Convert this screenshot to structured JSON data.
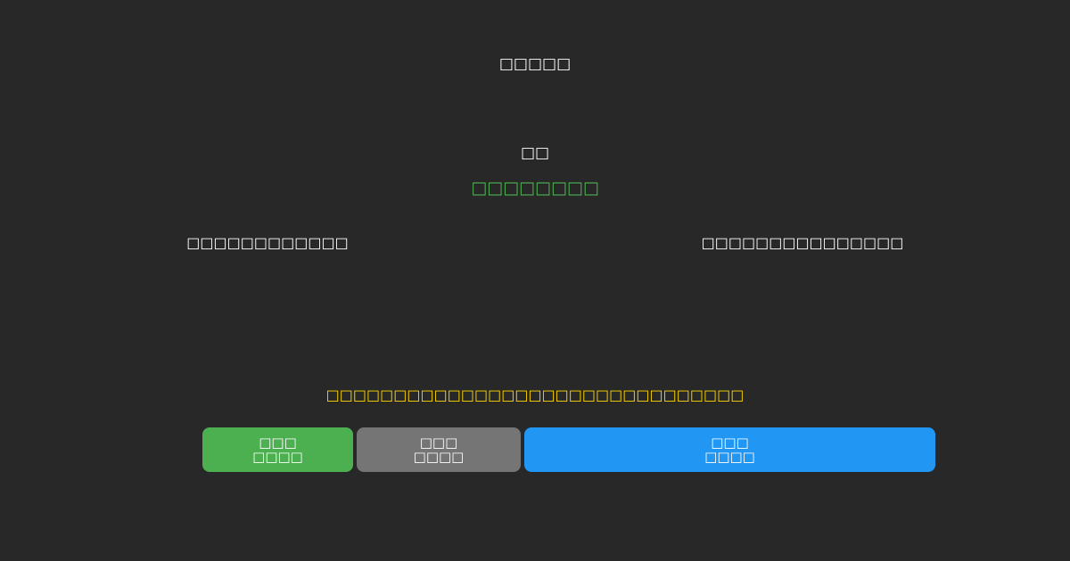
{
  "page": {
    "background_color": "#282828",
    "text_color": "#ffffff"
  },
  "header": {
    "title": "□□□□□"
  },
  "main": {
    "heading": "□□",
    "status_line": {
      "text": "□□□□□□□□",
      "color": "#4CAF50"
    },
    "left_label": "□□□□□□□□□□□□",
    "right_label": "□□□□□□□□□□□□□□□",
    "notice": {
      "text": "□□□□□□□□□□□□□□□□□□□□□□□□□□□□□□□",
      "color": "#FFD700"
    }
  },
  "buttons": [
    {
      "id": "green",
      "line1": "□□□",
      "line2": "□□□□",
      "color": "#4CAF50"
    },
    {
      "id": "gray",
      "line1": "□□□",
      "line2": "□□□□",
      "color": "#757575"
    },
    {
      "id": "blue",
      "line1": "□□□",
      "line2": "□□□□",
      "color": "#2196F3"
    }
  ]
}
